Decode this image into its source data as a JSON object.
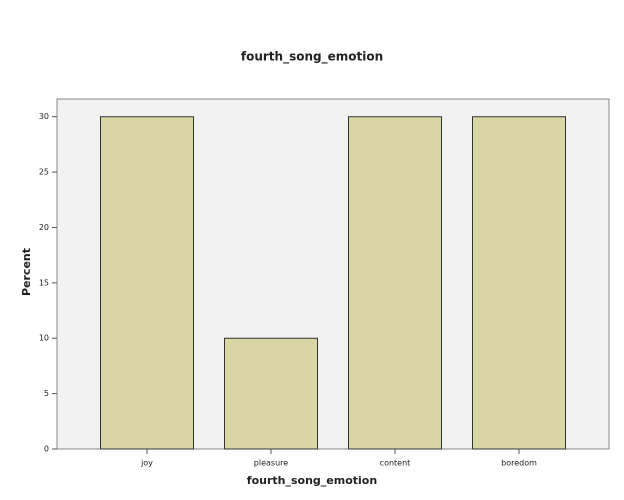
{
  "chart_data": {
    "type": "bar",
    "title": "fourth_song_emotion",
    "x_label": "fourth_song_emotion",
    "y_label": "Percent",
    "categories": [
      "joy",
      "pleasure",
      "content",
      "boredom"
    ],
    "values": [
      30,
      10,
      30,
      30
    ],
    "color": "#d9d6a5",
    "ylim": [
      0,
      31.6
    ],
    "yticks": [
      0,
      5,
      10,
      15,
      20,
      25,
      30
    ],
    "grid": false
  }
}
